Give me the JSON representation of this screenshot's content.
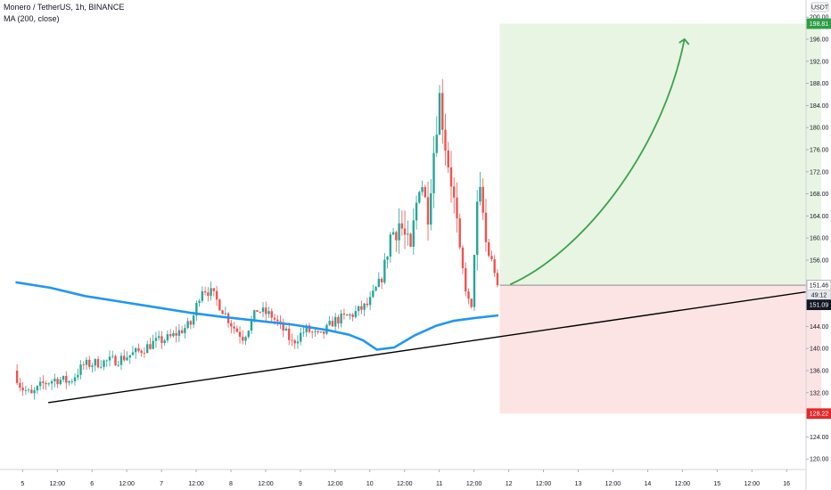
{
  "header": {
    "symbol_line": "Monero / TetherUS, 1h, BINANCE",
    "indicator_line": "MA (200, close)"
  },
  "currency_badge": "USDT",
  "colors": {
    "up": "#26a69a",
    "down": "#ef5350",
    "ma": "#2196f3",
    "trendline": "#000000",
    "profit_zone": "#e8f5e3",
    "loss_zone": "#fde4e4",
    "target_tag": "#2e9e46",
    "stop_tag": "#e02b2b",
    "current_tag": "#131722",
    "arrow": "#3aa24a"
  },
  "chart_data": {
    "type": "candlestick",
    "title": "Monero / TetherUS, 1h, BINANCE",
    "xlabel": "",
    "ylabel": "",
    "ylim": [
      117.5,
      201
    ],
    "y_ticks": [
      "200.00",
      "196.00",
      "192.00",
      "188.00",
      "184.00",
      "180.00",
      "176.00",
      "172.00",
      "168.00",
      "164.00",
      "160.00",
      "156.00",
      "144.00",
      "140.00",
      "136.00",
      "132.00",
      "124.00",
      "120.00"
    ],
    "x_ticks": [
      {
        "label": "5",
        "t": 0.1
      },
      {
        "label": "12:00",
        "t": 0.6
      },
      {
        "label": "6",
        "t": 1.1
      },
      {
        "label": "12:00",
        "t": 1.6
      },
      {
        "label": "7",
        "t": 2.1
      },
      {
        "label": "12:00",
        "t": 2.6
      },
      {
        "label": "8",
        "t": 3.1
      },
      {
        "label": "12:00",
        "t": 3.6
      },
      {
        "label": "9",
        "t": 4.1
      },
      {
        "label": "12:00",
        "t": 4.6
      },
      {
        "label": "10",
        "t": 5.1
      },
      {
        "label": "12:00",
        "t": 5.6
      },
      {
        "label": "11",
        "t": 6.1
      },
      {
        "label": "12:00",
        "t": 6.6
      },
      {
        "label": "12",
        "t": 7.1
      },
      {
        "label": "12:00",
        "t": 7.6
      },
      {
        "label": "13",
        "t": 8.1
      },
      {
        "label": "12:00",
        "t": 8.6
      },
      {
        "label": "14",
        "t": 9.1
      },
      {
        "label": "12:00",
        "t": 9.6
      },
      {
        "label": "15",
        "t": 10.1
      },
      {
        "label": "12:00",
        "t": 10.6
      },
      {
        "label": "16",
        "t": 11.1
      }
    ],
    "price_path": [
      {
        "t": 0.0,
        "p": 136
      },
      {
        "t": 0.1,
        "p": 133
      },
      {
        "t": 0.25,
        "p": 131.5
      },
      {
        "t": 0.4,
        "p": 133.5
      },
      {
        "t": 0.6,
        "p": 134.5
      },
      {
        "t": 0.8,
        "p": 134
      },
      {
        "t": 1.0,
        "p": 137
      },
      {
        "t": 1.25,
        "p": 137.5
      },
      {
        "t": 1.5,
        "p": 138
      },
      {
        "t": 1.8,
        "p": 139.5
      },
      {
        "t": 2.0,
        "p": 141
      },
      {
        "t": 2.25,
        "p": 142
      },
      {
        "t": 2.55,
        "p": 144.5
      },
      {
        "t": 2.7,
        "p": 151
      },
      {
        "t": 2.85,
        "p": 150
      },
      {
        "t": 3.0,
        "p": 147
      },
      {
        "t": 3.15,
        "p": 144
      },
      {
        "t": 3.3,
        "p": 142
      },
      {
        "t": 3.5,
        "p": 147
      },
      {
        "t": 3.7,
        "p": 146
      },
      {
        "t": 3.9,
        "p": 143
      },
      {
        "t": 4.0,
        "p": 141
      },
      {
        "t": 4.2,
        "p": 143.5
      },
      {
        "t": 4.4,
        "p": 142
      },
      {
        "t": 4.6,
        "p": 145
      },
      {
        "t": 4.85,
        "p": 146
      },
      {
        "t": 5.1,
        "p": 148
      },
      {
        "t": 5.3,
        "p": 153
      },
      {
        "t": 5.4,
        "p": 160
      },
      {
        "t": 5.55,
        "p": 163
      },
      {
        "t": 5.7,
        "p": 157
      },
      {
        "t": 5.85,
        "p": 172
      },
      {
        "t": 5.95,
        "p": 164
      },
      {
        "t": 6.05,
        "p": 177
      },
      {
        "t": 6.12,
        "p": 186
      },
      {
        "t": 6.22,
        "p": 176
      },
      {
        "t": 6.3,
        "p": 170
      },
      {
        "t": 6.42,
        "p": 157
      },
      {
        "t": 6.5,
        "p": 151
      },
      {
        "t": 6.58,
        "p": 146
      },
      {
        "t": 6.65,
        "p": 164
      },
      {
        "t": 6.72,
        "p": 168
      },
      {
        "t": 6.8,
        "p": 158
      },
      {
        "t": 6.9,
        "p": 155
      },
      {
        "t": 6.97,
        "p": 151.5
      }
    ],
    "ma200": [
      {
        "t": 0.0,
        "p": 152
      },
      {
        "t": 0.5,
        "p": 151
      },
      {
        "t": 1.0,
        "p": 149.5
      },
      {
        "t": 1.5,
        "p": 148.5
      },
      {
        "t": 2.0,
        "p": 147.5
      },
      {
        "t": 2.5,
        "p": 146.5
      },
      {
        "t": 3.0,
        "p": 145.7
      },
      {
        "t": 3.5,
        "p": 145
      },
      {
        "t": 4.0,
        "p": 144.3
      },
      {
        "t": 4.5,
        "p": 143.3
      },
      {
        "t": 4.8,
        "p": 142.5
      },
      {
        "t": 5.0,
        "p": 141.5
      },
      {
        "t": 5.2,
        "p": 139.8
      },
      {
        "t": 5.45,
        "p": 140.2
      },
      {
        "t": 5.75,
        "p": 142.4
      },
      {
        "t": 6.05,
        "p": 144.1
      },
      {
        "t": 6.3,
        "p": 145
      },
      {
        "t": 6.6,
        "p": 145.5
      },
      {
        "t": 6.95,
        "p": 146
      }
    ],
    "trendline": [
      {
        "t": 0.47,
        "p": 130.2
      },
      {
        "t": 11.95,
        "p": 151.3
      }
    ],
    "position": {
      "t_start": 6.97,
      "t_end": 11.6,
      "entry": 151.46,
      "target": 198.81,
      "stop": 128.22
    },
    "arrow_path": [
      {
        "t": 7.12,
        "p": 151.6
      },
      {
        "t": 8.1,
        "p": 157
      },
      {
        "t": 9.3,
        "p": 175
      },
      {
        "t": 9.63,
        "p": 196
      }
    ],
    "price_labels": {
      "target": "198.81",
      "entry": "151.46",
      "countdown": "49:12",
      "current": "151.09",
      "stop": "128.22"
    }
  }
}
